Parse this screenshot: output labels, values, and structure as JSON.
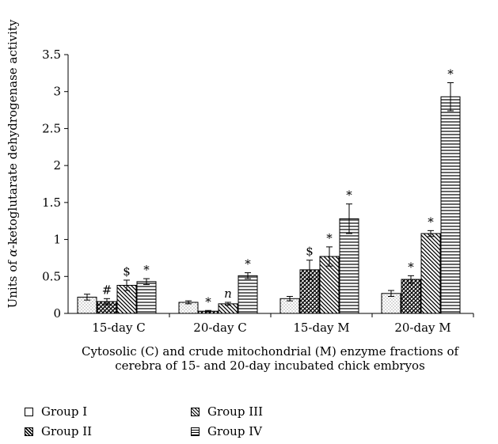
{
  "chart_data": {
    "type": "bar",
    "title": "",
    "ylabel_prefix": "Units of ",
    "ylabel_symbol": "α",
    "ylabel_suffix": "-ketoglutarate dehydrogenase activity",
    "xlabel_line1": "Cytosolic (C) and crude mitochondrial (M) enzyme fractions of",
    "xlabel_line2": "cerebra of 15- and 20-day incubated chick embryos",
    "ylim": [
      0,
      3.5
    ],
    "yticks": [
      "0",
      "0.5",
      "1",
      "1.5",
      "2",
      "2.5",
      "3",
      "3.5"
    ],
    "categories": [
      "15-day C",
      "20-day C",
      "15-day M",
      "20-day M"
    ],
    "series": [
      {
        "name": "Group I",
        "pattern": "dots",
        "values": [
          0.22,
          0.15,
          0.2,
          0.27
        ],
        "errors": [
          0.04,
          0.02,
          0.03,
          0.04
        ],
        "marks": [
          "",
          "",
          "",
          ""
        ]
      },
      {
        "name": "Group II",
        "pattern": "crosshatch",
        "values": [
          0.16,
          0.03,
          0.59,
          0.46
        ],
        "errors": [
          0.04,
          0.01,
          0.13,
          0.05
        ],
        "marks": [
          "#",
          "*",
          "$",
          "*"
        ]
      },
      {
        "name": "Group III",
        "pattern": "diagonal",
        "values": [
          0.38,
          0.13,
          0.77,
          1.08
        ],
        "errors": [
          0.07,
          0.02,
          0.13,
          0.04
        ],
        "marks": [
          "$",
          "n",
          "*",
          "*"
        ]
      },
      {
        "name": "Group IV",
        "pattern": "horizontal",
        "values": [
          0.43,
          0.51,
          1.28,
          2.93
        ],
        "errors": [
          0.04,
          0.04,
          0.2,
          0.19
        ],
        "marks": [
          "*",
          "*",
          "*",
          "*"
        ]
      }
    ],
    "grid": false,
    "legend_position": "bottom"
  },
  "colors": {
    "axis": "#000000",
    "background": "#ffffff"
  }
}
